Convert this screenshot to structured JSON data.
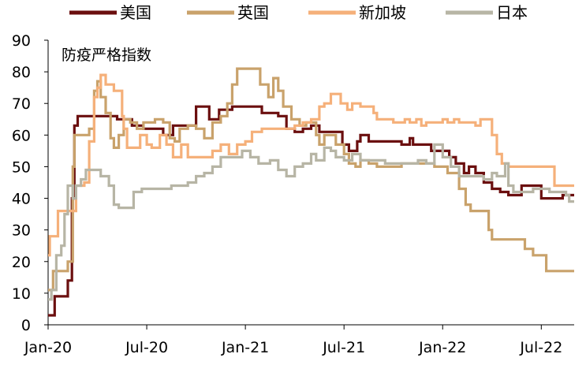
{
  "chart_data": {
    "type": "line",
    "title": "防疫严格指数",
    "xlabel": "",
    "ylabel": "",
    "ylim": [
      0,
      90
    ],
    "yticks": [
      0,
      10,
      20,
      30,
      40,
      50,
      60,
      70,
      80,
      90
    ],
    "xlim": [
      0,
      32
    ],
    "xticks": [
      {
        "label": "Jan-20",
        "x": 0
      },
      {
        "label": "Jul-20",
        "x": 6
      },
      {
        "label": "Jan-21",
        "x": 12
      },
      {
        "label": "Jul-21",
        "x": 18
      },
      {
        "label": "Jan-22",
        "x": 24
      },
      {
        "label": "Jul-22",
        "x": 30
      }
    ],
    "legend_position": "top",
    "series": [
      {
        "name": "美国",
        "color": "#6b0f0f",
        "points": [
          [
            0,
            3
          ],
          [
            0.4,
            9
          ],
          [
            1.2,
            14
          ],
          [
            1.45,
            40
          ],
          [
            1.6,
            63
          ],
          [
            1.8,
            66
          ],
          [
            4.0,
            66
          ],
          [
            4.2,
            65
          ],
          [
            5.0,
            65
          ],
          [
            5.1,
            63
          ],
          [
            5.8,
            62
          ],
          [
            6.6,
            62
          ],
          [
            7.0,
            60
          ],
          [
            7.6,
            63
          ],
          [
            8.4,
            63
          ],
          [
            9.0,
            69
          ],
          [
            9.6,
            69
          ],
          [
            9.8,
            65
          ],
          [
            10.3,
            65
          ],
          [
            10.4,
            68
          ],
          [
            11.0,
            68
          ],
          [
            11.2,
            69
          ],
          [
            12.6,
            69
          ],
          [
            13.0,
            67
          ],
          [
            14.0,
            66
          ],
          [
            14.5,
            62
          ],
          [
            15.0,
            61
          ],
          [
            15.5,
            62
          ],
          [
            16.0,
            63
          ],
          [
            16.5,
            61
          ],
          [
            17.5,
            61
          ],
          [
            17.9,
            57
          ],
          [
            18.3,
            55
          ],
          [
            18.8,
            58
          ],
          [
            19.0,
            60
          ],
          [
            19.5,
            58
          ],
          [
            21.0,
            58
          ],
          [
            21.5,
            57
          ],
          [
            22.0,
            59
          ],
          [
            22.2,
            57
          ],
          [
            23.0,
            57
          ],
          [
            23.3,
            55
          ],
          [
            24.0,
            55
          ],
          [
            24.4,
            53
          ],
          [
            24.8,
            51
          ],
          [
            25.3,
            48
          ],
          [
            25.6,
            50
          ],
          [
            26.0,
            48
          ],
          [
            26.5,
            45
          ],
          [
            27.0,
            43
          ],
          [
            27.5,
            42
          ],
          [
            28.0,
            41
          ],
          [
            28.6,
            41
          ],
          [
            28.8,
            44
          ],
          [
            29.5,
            44
          ],
          [
            30.0,
            40
          ],
          [
            31.0,
            40
          ],
          [
            31.3,
            41
          ],
          [
            32.0,
            41
          ]
        ]
      },
      {
        "name": "英国",
        "color": "#c9a26b",
        "points": [
          [
            0,
            11
          ],
          [
            0.3,
            17
          ],
          [
            1.0,
            17
          ],
          [
            1.2,
            20
          ],
          [
            1.5,
            50
          ],
          [
            1.6,
            60
          ],
          [
            2.2,
            60
          ],
          [
            2.5,
            62
          ],
          [
            2.8,
            74
          ],
          [
            3.0,
            77
          ],
          [
            3.2,
            72
          ],
          [
            3.5,
            67
          ],
          [
            3.8,
            59
          ],
          [
            4.0,
            56
          ],
          [
            4.3,
            60
          ],
          [
            4.6,
            65
          ],
          [
            5.0,
            64
          ],
          [
            5.4,
            62
          ],
          [
            5.8,
            64
          ],
          [
            6.5,
            65
          ],
          [
            7.0,
            64
          ],
          [
            7.4,
            59
          ],
          [
            7.7,
            58
          ],
          [
            8.0,
            62
          ],
          [
            8.5,
            63
          ],
          [
            9.0,
            62
          ],
          [
            9.5,
            59
          ],
          [
            10.0,
            64
          ],
          [
            10.5,
            66
          ],
          [
            10.9,
            70
          ],
          [
            11.2,
            76
          ],
          [
            11.5,
            81
          ],
          [
            12.6,
            81
          ],
          [
            12.9,
            76
          ],
          [
            13.4,
            72
          ],
          [
            13.7,
            78
          ],
          [
            14.0,
            74
          ],
          [
            14.3,
            69
          ],
          [
            14.8,
            65
          ],
          [
            15.3,
            63
          ],
          [
            15.7,
            64
          ],
          [
            16.2,
            64
          ],
          [
            16.3,
            60
          ],
          [
            16.5,
            57
          ],
          [
            16.8,
            60
          ],
          [
            17.2,
            60
          ],
          [
            17.5,
            57
          ],
          [
            18.0,
            54
          ],
          [
            18.3,
            51
          ],
          [
            18.7,
            50
          ],
          [
            19.0,
            52
          ],
          [
            19.5,
            51
          ],
          [
            20.0,
            50
          ],
          [
            21.0,
            50
          ],
          [
            21.5,
            51
          ],
          [
            23.0,
            51
          ],
          [
            23.5,
            50
          ],
          [
            24.0,
            50
          ],
          [
            24.3,
            48
          ],
          [
            25.0,
            43
          ],
          [
            25.4,
            38
          ],
          [
            25.7,
            36
          ],
          [
            26.6,
            36
          ],
          [
            26.8,
            30
          ],
          [
            27.0,
            27
          ],
          [
            28.6,
            27
          ],
          [
            29.0,
            24
          ],
          [
            29.5,
            22
          ],
          [
            30.0,
            22
          ],
          [
            30.3,
            17
          ],
          [
            31.5,
            17
          ],
          [
            32.0,
            17
          ]
        ]
      },
      {
        "name": "新加坡",
        "color": "#f5b07a",
        "points": [
          [
            0,
            22
          ],
          [
            0.1,
            28
          ],
          [
            0.4,
            28
          ],
          [
            0.6,
            36
          ],
          [
            1.5,
            36
          ],
          [
            1.7,
            44
          ],
          [
            2.2,
            45
          ],
          [
            2.5,
            58
          ],
          [
            2.8,
            72
          ],
          [
            3.0,
            75
          ],
          [
            3.2,
            79
          ],
          [
            3.5,
            76
          ],
          [
            4.0,
            74
          ],
          [
            4.5,
            66
          ],
          [
            4.6,
            62
          ],
          [
            4.8,
            56
          ],
          [
            5.2,
            56
          ],
          [
            5.6,
            60
          ],
          [
            6.0,
            57
          ],
          [
            6.3,
            56
          ],
          [
            6.8,
            60
          ],
          [
            7.2,
            57
          ],
          [
            7.6,
            53
          ],
          [
            8.1,
            57
          ],
          [
            8.5,
            53
          ],
          [
            9.5,
            53
          ],
          [
            10.0,
            55
          ],
          [
            10.5,
            57
          ],
          [
            11.0,
            54
          ],
          [
            11.5,
            57
          ],
          [
            12.0,
            58
          ],
          [
            12.4,
            61
          ],
          [
            13.0,
            62
          ],
          [
            14.0,
            62
          ],
          [
            14.8,
            62
          ],
          [
            15.0,
            63
          ],
          [
            15.5,
            64
          ],
          [
            16.0,
            65
          ],
          [
            16.5,
            69
          ],
          [
            16.8,
            70
          ],
          [
            17.2,
            73
          ],
          [
            17.8,
            70
          ],
          [
            18.2,
            68
          ],
          [
            18.5,
            70
          ],
          [
            19.0,
            69
          ],
          [
            19.8,
            67
          ],
          [
            20.0,
            65
          ],
          [
            21.0,
            64
          ],
          [
            21.4,
            64
          ],
          [
            21.7,
            65
          ],
          [
            22.0,
            64
          ],
          [
            22.4,
            65
          ],
          [
            22.7,
            63
          ],
          [
            23.0,
            64
          ],
          [
            23.5,
            64
          ],
          [
            24.0,
            65
          ],
          [
            24.3,
            64
          ],
          [
            24.7,
            65
          ],
          [
            25.0,
            64
          ],
          [
            25.8,
            64
          ],
          [
            26.0,
            63
          ],
          [
            26.3,
            65
          ],
          [
            27.0,
            60
          ],
          [
            27.3,
            54
          ],
          [
            27.6,
            51
          ],
          [
            28.0,
            50
          ],
          [
            30.5,
            50
          ],
          [
            30.8,
            44
          ],
          [
            32.0,
            44
          ]
        ]
      },
      {
        "name": "日本",
        "color": "#b7b5a5",
        "points": [
          [
            0,
            8
          ],
          [
            0.2,
            11
          ],
          [
            0.5,
            22
          ],
          [
            0.8,
            25
          ],
          [
            1.0,
            35
          ],
          [
            1.2,
            44
          ],
          [
            1.5,
            40
          ],
          [
            1.7,
            44
          ],
          [
            2.0,
            46
          ],
          [
            2.3,
            49
          ],
          [
            3.0,
            49
          ],
          [
            3.2,
            47
          ],
          [
            3.7,
            44
          ],
          [
            4.0,
            38
          ],
          [
            4.3,
            37
          ],
          [
            5.0,
            37
          ],
          [
            5.2,
            42
          ],
          [
            5.7,
            43
          ],
          [
            6.5,
            43
          ],
          [
            7.0,
            43
          ],
          [
            7.5,
            44
          ],
          [
            8.0,
            44
          ],
          [
            8.5,
            45
          ],
          [
            9.0,
            47
          ],
          [
            9.5,
            48
          ],
          [
            10.0,
            50
          ],
          [
            10.5,
            53
          ],
          [
            11.5,
            53
          ],
          [
            11.8,
            55
          ],
          [
            12.3,
            53
          ],
          [
            12.8,
            51
          ],
          [
            13.5,
            52
          ],
          [
            14.0,
            49
          ],
          [
            14.5,
            47
          ],
          [
            15.0,
            50
          ],
          [
            15.5,
            51
          ],
          [
            16.0,
            54
          ],
          [
            16.3,
            52
          ],
          [
            16.8,
            56
          ],
          [
            17.2,
            55
          ],
          [
            17.5,
            53
          ],
          [
            18.0,
            52
          ],
          [
            18.5,
            54
          ],
          [
            19.0,
            52
          ],
          [
            20.0,
            52
          ],
          [
            20.5,
            51
          ],
          [
            22.0,
            51
          ],
          [
            22.5,
            52
          ],
          [
            23.0,
            51
          ],
          [
            23.5,
            57
          ],
          [
            24.0,
            53
          ],
          [
            24.5,
            50
          ],
          [
            25.0,
            47
          ],
          [
            26.0,
            47
          ],
          [
            26.5,
            46
          ],
          [
            27.0,
            48
          ],
          [
            27.3,
            47
          ],
          [
            27.8,
            51
          ],
          [
            28.0,
            44
          ],
          [
            28.3,
            42
          ],
          [
            29.0,
            42
          ],
          [
            29.5,
            43
          ],
          [
            30.0,
            43
          ],
          [
            30.5,
            42
          ],
          [
            31.0,
            42
          ],
          [
            31.5,
            41
          ],
          [
            31.7,
            39
          ],
          [
            32.0,
            39
          ]
        ]
      }
    ]
  }
}
